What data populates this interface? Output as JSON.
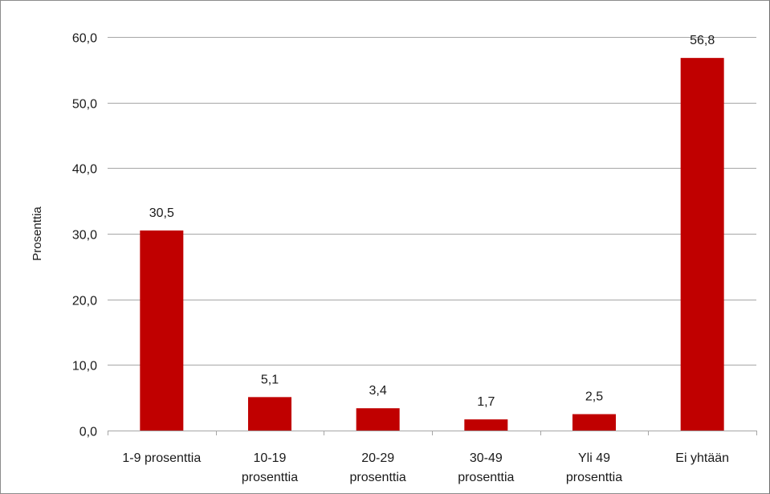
{
  "chart_data": {
    "type": "bar",
    "categories": [
      [
        "1-9 prosenttia"
      ],
      [
        "10-19",
        "prosenttia"
      ],
      [
        "20-29",
        "prosenttia"
      ],
      [
        "30-49",
        "prosenttia"
      ],
      [
        "Yli 49",
        "prosenttia"
      ],
      [
        "Ei yhtään"
      ]
    ],
    "values": [
      30.5,
      5.1,
      3.4,
      1.7,
      2.5,
      56.8
    ],
    "data_labels": [
      "30,5",
      "5,1",
      "3,4",
      "1,7",
      "2,5",
      "56,8"
    ],
    "yticks": [
      0,
      10,
      20,
      30,
      40,
      50,
      60
    ],
    "ytick_labels": [
      "0,0",
      "10,0",
      "20,0",
      "30,0",
      "40,0",
      "50,0",
      "60,0"
    ],
    "ylim": [
      0,
      60
    ],
    "ylabel": "Prosenttia",
    "grid": true,
    "legend": "none",
    "bar_color": "#c00000",
    "grid_color": "#a6a6a6"
  }
}
